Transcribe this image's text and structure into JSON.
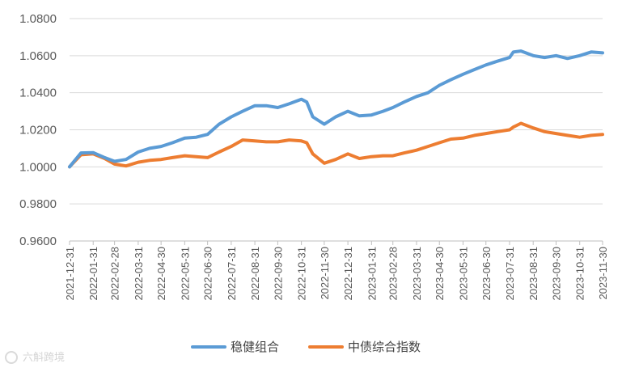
{
  "chart_data": {
    "type": "line",
    "title": "",
    "xlabel": "",
    "ylabel": "",
    "ylim": [
      0.96,
      1.08
    ],
    "y_ticks": [
      "1.0800",
      "1.0600",
      "1.0400",
      "1.0200",
      "1.0000",
      "0.9800",
      "0.9600"
    ],
    "x_ticks": [
      "2021-12-31",
      "2022-01-31",
      "2022-02-28",
      "2022-03-31",
      "2022-04-30",
      "2022-05-31",
      "2022-06-30",
      "2022-07-31",
      "2022-08-31",
      "2022-09-30",
      "2022-10-31",
      "2022-11-30",
      "2022-12-31",
      "2023-01-31",
      "2023-02-28",
      "2023-03-31",
      "2023-04-30",
      "2023-05-31",
      "2023-06-30",
      "2023-07-31",
      "2023-08-31",
      "2023-09-30",
      "2023-10-31",
      "2023-11-30"
    ],
    "grid": "horizontal",
    "legend": "bottom",
    "x": [
      "2021-12-31",
      "2022-01-15",
      "2022-01-31",
      "2022-02-15",
      "2022-02-28",
      "2022-03-15",
      "2022-03-31",
      "2022-04-15",
      "2022-04-30",
      "2022-05-15",
      "2022-05-31",
      "2022-06-15",
      "2022-06-30",
      "2022-07-15",
      "2022-07-31",
      "2022-08-15",
      "2022-08-31",
      "2022-09-15",
      "2022-09-30",
      "2022-10-15",
      "2022-10-31",
      "2022-11-07",
      "2022-11-15",
      "2022-11-30",
      "2022-12-15",
      "2022-12-31",
      "2023-01-15",
      "2023-01-31",
      "2023-02-15",
      "2023-02-28",
      "2023-03-15",
      "2023-03-31",
      "2023-04-15",
      "2023-04-30",
      "2023-05-15",
      "2023-05-31",
      "2023-06-15",
      "2023-06-30",
      "2023-07-15",
      "2023-07-31",
      "2023-08-05",
      "2023-08-15",
      "2023-08-31",
      "2023-09-15",
      "2023-09-30",
      "2023-10-15",
      "2023-10-31",
      "2023-11-15",
      "2023-11-30"
    ],
    "series": [
      {
        "name": "稳健组合",
        "color": "#5B9BD5",
        "values": [
          1.0,
          1.0075,
          1.0077,
          1.005,
          1.003,
          1.004,
          1.008,
          1.01,
          1.011,
          1.013,
          1.0155,
          1.016,
          1.0175,
          1.023,
          1.027,
          1.03,
          1.033,
          1.033,
          1.032,
          1.034,
          1.0365,
          1.035,
          1.027,
          1.023,
          1.027,
          1.03,
          1.0275,
          1.028,
          1.03,
          1.032,
          1.035,
          1.038,
          1.04,
          1.044,
          1.047,
          1.05,
          1.0525,
          1.055,
          1.057,
          1.059,
          1.062,
          1.0625,
          1.06,
          1.059,
          1.06,
          1.0585,
          1.06,
          1.062,
          1.0615
        ]
      },
      {
        "name": "中债综合指数",
        "color": "#ED7D31",
        "values": [
          1.0,
          1.0065,
          1.007,
          1.0045,
          1.0015,
          1.0005,
          1.0025,
          1.0035,
          1.004,
          1.005,
          1.006,
          1.0055,
          1.005,
          1.008,
          1.011,
          1.0145,
          1.014,
          1.0135,
          1.0135,
          1.0145,
          1.014,
          1.013,
          1.007,
          1.002,
          1.004,
          1.007,
          1.0045,
          1.0055,
          1.006,
          1.006,
          1.0075,
          1.009,
          1.011,
          1.013,
          1.015,
          1.0155,
          1.017,
          1.018,
          1.019,
          1.02,
          1.0215,
          1.0235,
          1.021,
          1.019,
          1.018,
          1.017,
          1.016,
          1.017,
          1.0175
        ]
      }
    ]
  },
  "watermark": "六斛跨境"
}
